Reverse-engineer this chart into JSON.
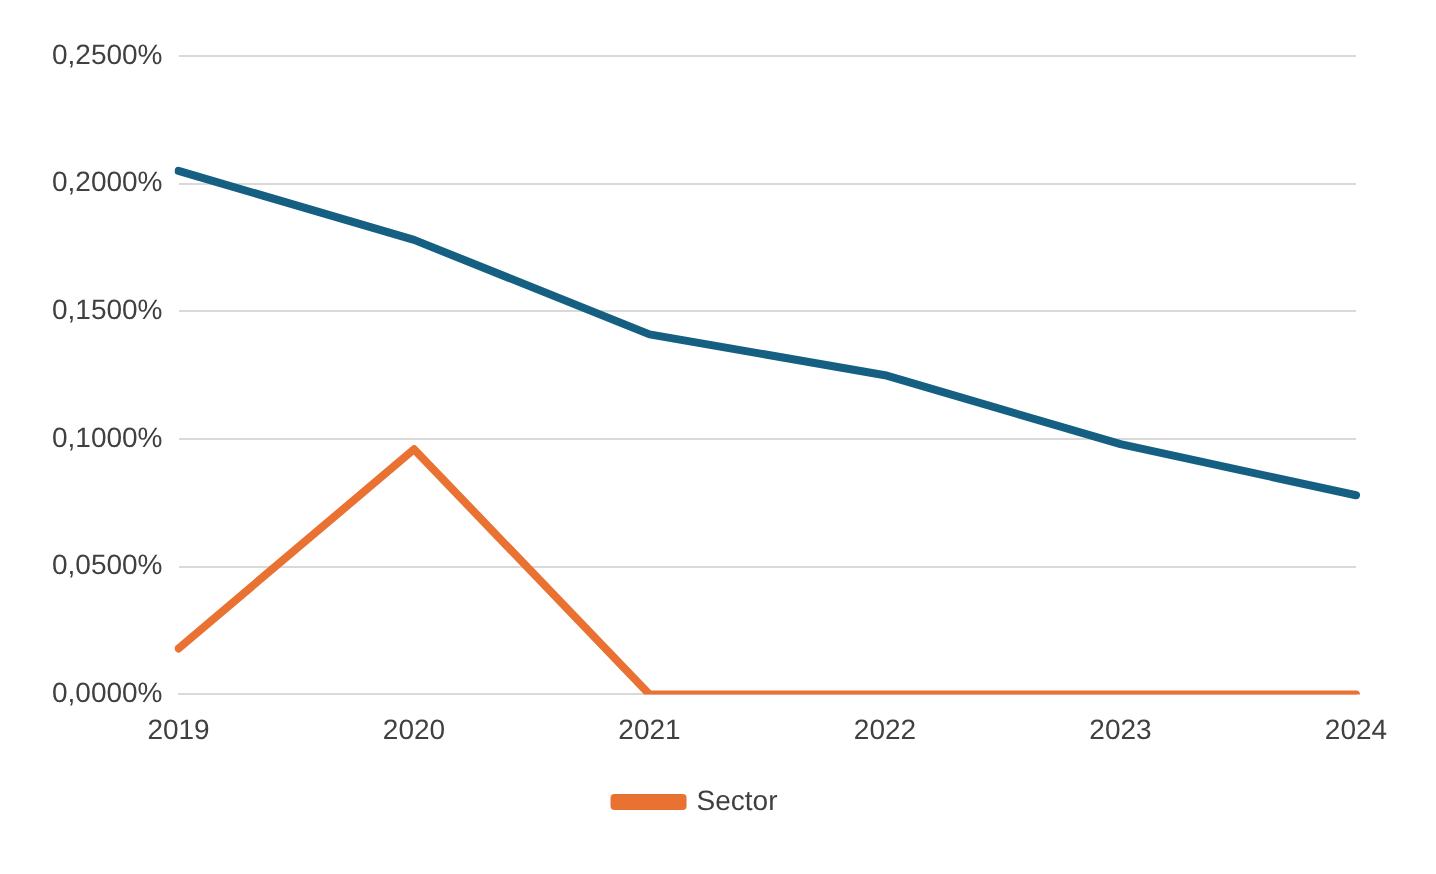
{
  "chart_data": {
    "type": "line",
    "categories": [
      "2019",
      "2020",
      "2021",
      "2022",
      "2023",
      "2024"
    ],
    "series": [
      {
        "color": "#156082",
        "values": [
          0.205,
          0.178,
          0.141,
          0.125,
          0.098,
          0.078
        ]
      },
      {
        "name": "Sector",
        "color": "#e97132",
        "values": [
          0.018,
          0.096,
          0,
          0,
          0,
          0
        ]
      }
    ],
    "ylim": [
      0,
      0.25
    ],
    "yticks": [
      {
        "value": 0,
        "label": "0,0000%"
      },
      {
        "value": 0.05,
        "label": "0,0500%"
      },
      {
        "value": 0.1,
        "label": "0,1000%"
      },
      {
        "value": 0.15,
        "label": "0,1500%"
      },
      {
        "value": 0.2,
        "label": "0,2000%"
      },
      {
        "value": 0.25,
        "label": "0,2500%"
      }
    ],
    "grid": "y",
    "legend": "bottom",
    "marker": "none",
    "line_style": "solid"
  }
}
